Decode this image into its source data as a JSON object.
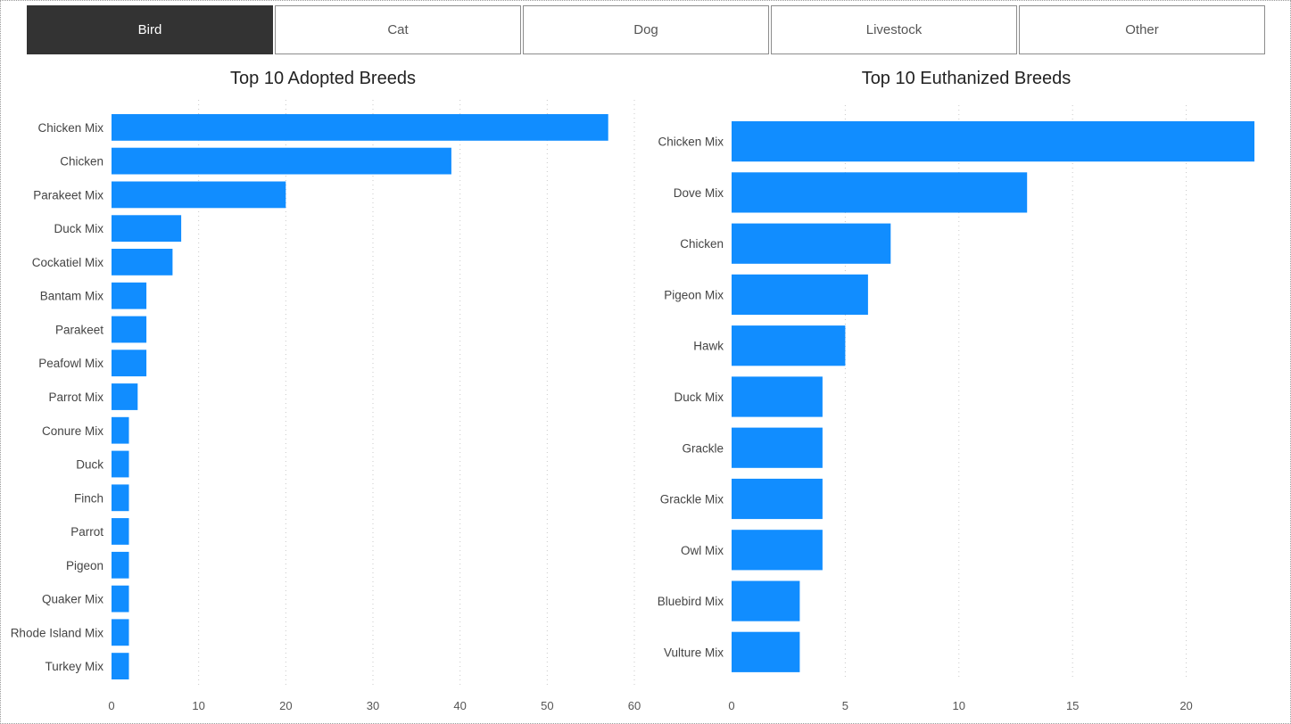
{
  "tabs": [
    {
      "label": "Bird",
      "active": true
    },
    {
      "label": "Cat",
      "active": false
    },
    {
      "label": "Dog",
      "active": false
    },
    {
      "label": "Livestock",
      "active": false
    },
    {
      "label": "Other",
      "active": false
    }
  ],
  "colors": {
    "bar": "#118DFF",
    "active_tab": "#333333"
  },
  "chart_data": [
    {
      "type": "bar",
      "orientation": "horizontal",
      "title": "Top 10 Adopted Breeds",
      "categories": [
        "Chicken Mix",
        "Chicken",
        "Parakeet Mix",
        "Duck Mix",
        "Cockatiel Mix",
        "Bantam Mix",
        "Parakeet",
        "Peafowl Mix",
        "Parrot Mix",
        "Conure Mix",
        "Duck",
        "Finch",
        "Parrot",
        "Pigeon",
        "Quaker Mix",
        "Rhode Island Mix",
        "Turkey Mix"
      ],
      "values": [
        57,
        39,
        20,
        8,
        7,
        4,
        4,
        4,
        3,
        2,
        2,
        2,
        2,
        2,
        2,
        2,
        2
      ],
      "xlim": [
        0,
        60
      ],
      "xticks": [
        0,
        10,
        20,
        30,
        40,
        50,
        60
      ],
      "grid": true
    },
    {
      "type": "bar",
      "orientation": "horizontal",
      "title": "Top 10 Euthanized Breeds",
      "categories": [
        "Chicken Mix",
        "Dove Mix",
        "Chicken",
        "Pigeon Mix",
        "Hawk",
        "Duck Mix",
        "Grackle",
        "Grackle Mix",
        "Owl Mix",
        "Bluebird Mix",
        "Vulture Mix"
      ],
      "values": [
        23,
        13,
        7,
        6,
        5,
        4,
        4,
        4,
        4,
        3,
        3
      ],
      "xlim": [
        0,
        23
      ],
      "xticks": [
        0,
        5,
        10,
        15,
        20
      ],
      "grid": true
    }
  ]
}
